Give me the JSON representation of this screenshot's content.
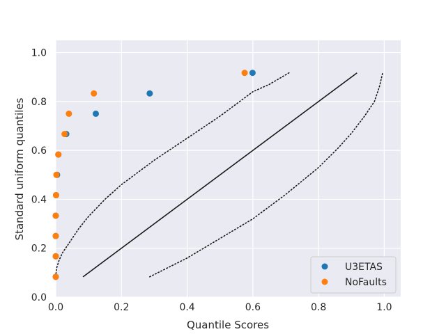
{
  "chart_data": {
    "type": "scatter",
    "xlabel": "Quantile Scores",
    "ylabel": "Standard uniform quantiles",
    "xlim": [
      0.0,
      1.05
    ],
    "ylim": [
      0.0,
      1.05
    ],
    "x_ticks": [
      "0.0",
      "0.2",
      "0.4",
      "0.6",
      "0.8",
      "1.0"
    ],
    "y_ticks": [
      "0.0",
      "0.2",
      "0.4",
      "0.6",
      "0.8",
      "1.0"
    ],
    "x_tick_values": [
      0.0,
      0.2,
      0.4,
      0.6,
      0.8,
      1.0
    ],
    "y_tick_values": [
      0.0,
      0.2,
      0.4,
      0.6,
      0.8,
      1.0
    ],
    "grid": true,
    "legend_position": "bottom-right",
    "series": [
      {
        "name": "U3ETAS",
        "color": "#1f77b4",
        "points": [
          {
            "x": 0.0,
            "y": 0.083
          },
          {
            "x": 0.0,
            "y": 0.167
          },
          {
            "x": 0.0,
            "y": 0.25
          },
          {
            "x": 0.0,
            "y": 0.333
          },
          {
            "x": 0.001,
            "y": 0.417
          },
          {
            "x": 0.004,
            "y": 0.5
          },
          {
            "x": 0.008,
            "y": 0.583
          },
          {
            "x": 0.032,
            "y": 0.667
          },
          {
            "x": 0.122,
            "y": 0.75
          },
          {
            "x": 0.286,
            "y": 0.833
          },
          {
            "x": 0.599,
            "y": 0.917
          }
        ]
      },
      {
        "name": "NoFaults",
        "color": "#ff7f0e",
        "points": [
          {
            "x": 0.0,
            "y": 0.083
          },
          {
            "x": 0.0,
            "y": 0.167
          },
          {
            "x": 0.0,
            "y": 0.25
          },
          {
            "x": 0.0,
            "y": 0.333
          },
          {
            "x": 0.001,
            "y": 0.417
          },
          {
            "x": 0.002,
            "y": 0.5
          },
          {
            "x": 0.008,
            "y": 0.583
          },
          {
            "x": 0.027,
            "y": 0.667
          },
          {
            "x": 0.04,
            "y": 0.75
          },
          {
            "x": 0.116,
            "y": 0.833
          },
          {
            "x": 0.575,
            "y": 0.917
          }
        ]
      }
    ],
    "reference_line": {
      "color": "#1a1a1a",
      "points": [
        {
          "x": 0.083,
          "y": 0.083
        },
        {
          "x": 0.917,
          "y": 0.917
        }
      ]
    },
    "confidence_bounds": {
      "color": "#1a1a1a",
      "upper": [
        {
          "x": 0.0,
          "y": 0.083
        },
        {
          "x": 0.0,
          "y": 0.09
        },
        {
          "x": 0.003,
          "y": 0.12
        },
        {
          "x": 0.01,
          "y": 0.15
        },
        {
          "x": 0.02,
          "y": 0.18
        },
        {
          "x": 0.04,
          "y": 0.22
        },
        {
          "x": 0.07,
          "y": 0.28
        },
        {
          "x": 0.1,
          "y": 0.33
        },
        {
          "x": 0.15,
          "y": 0.4
        },
        {
          "x": 0.2,
          "y": 0.46
        },
        {
          "x": 0.3,
          "y": 0.56
        },
        {
          "x": 0.4,
          "y": 0.65
        },
        {
          "x": 0.5,
          "y": 0.74
        },
        {
          "x": 0.6,
          "y": 0.84
        },
        {
          "x": 0.65,
          "y": 0.87
        },
        {
          "x": 0.71,
          "y": 0.917
        }
      ],
      "lower": [
        {
          "x": 0.286,
          "y": 0.083
        },
        {
          "x": 0.4,
          "y": 0.16
        },
        {
          "x": 0.5,
          "y": 0.24
        },
        {
          "x": 0.6,
          "y": 0.32
        },
        {
          "x": 0.7,
          "y": 0.42
        },
        {
          "x": 0.8,
          "y": 0.53
        },
        {
          "x": 0.86,
          "y": 0.61
        },
        {
          "x": 0.9,
          "y": 0.67
        },
        {
          "x": 0.94,
          "y": 0.74
        },
        {
          "x": 0.97,
          "y": 0.8
        },
        {
          "x": 0.985,
          "y": 0.86
        },
        {
          "x": 0.995,
          "y": 0.917
        }
      ]
    }
  }
}
